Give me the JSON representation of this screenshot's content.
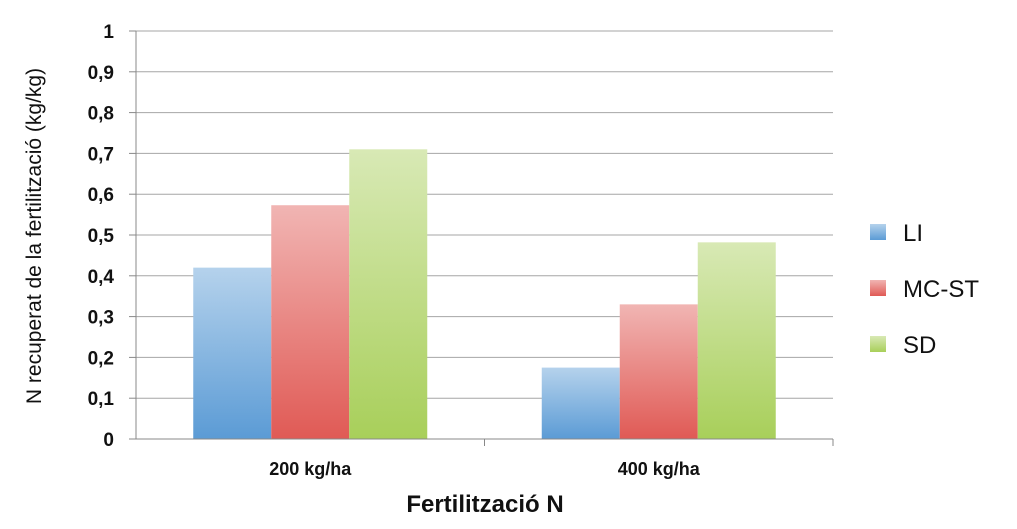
{
  "chart_data": {
    "type": "bar",
    "categories": [
      "200 kg/ha",
      "400 kg/ha"
    ],
    "series": [
      {
        "name": "LI",
        "values": [
          0.42,
          0.175
        ],
        "color": "#5b9bd5"
      },
      {
        "name": "MC-ST",
        "values": [
          0.573,
          0.33
        ],
        "color": "#e05a55"
      },
      {
        "name": "SD",
        "values": [
          0.71,
          0.482
        ],
        "color": "#a8cf5a"
      }
    ],
    "xlabel": "Fertilització N",
    "ylabel": "N recuperat de la fertilització  (kg/kg)",
    "ylim": [
      0,
      1
    ],
    "yticks": [
      "0",
      "0,1",
      "0,2",
      "0,3",
      "0,4",
      "0,5",
      "0,6",
      "0,7",
      "0,8",
      "0,9",
      "1"
    ],
    "grid": true,
    "legend_position": "right"
  }
}
